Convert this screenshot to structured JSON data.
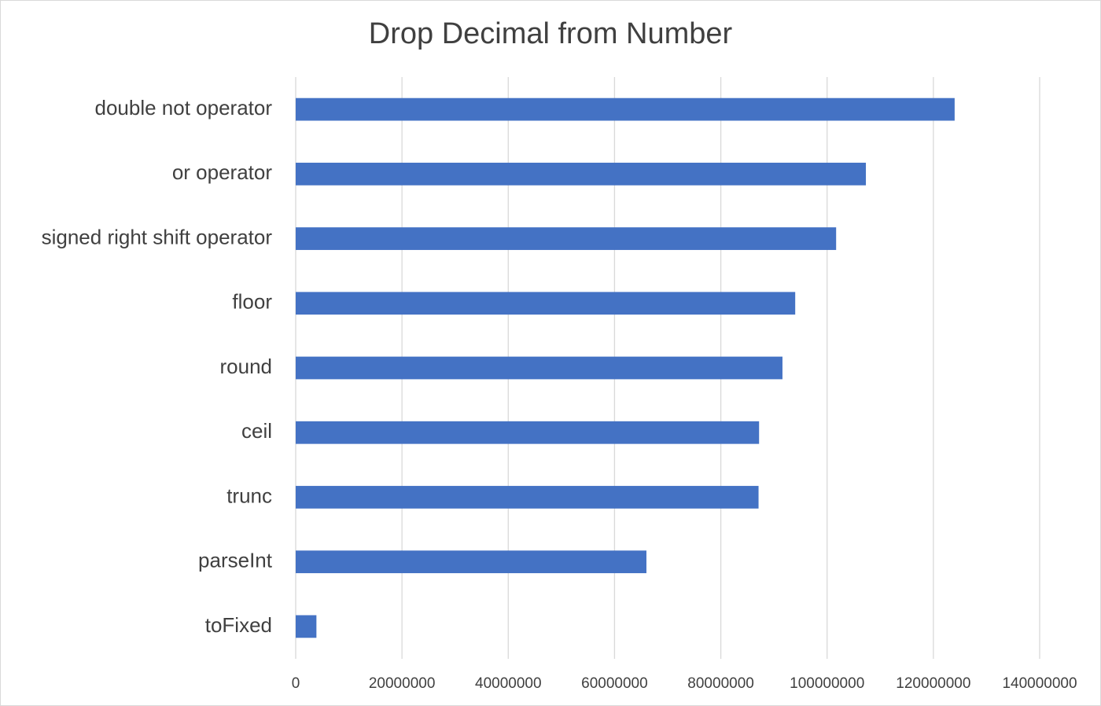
{
  "chart_data": {
    "type": "bar",
    "orientation": "horizontal",
    "title": "Drop Decimal from Number",
    "xlabel": "",
    "ylabel": "",
    "categories": [
      "double not operator",
      "or operator",
      "signed right shift operator",
      "floor",
      "round",
      "ceil",
      "trunc",
      "parseInt",
      "toFixed"
    ],
    "values": [
      124000000,
      107300000,
      101700000,
      94000000,
      91600000,
      87200000,
      87100000,
      66000000,
      3900000
    ],
    "xlim": [
      0,
      140000000
    ],
    "xticks": [
      0,
      20000000,
      40000000,
      60000000,
      80000000,
      100000000,
      120000000,
      140000000
    ],
    "xtick_labels": [
      "0",
      "20000000",
      "40000000",
      "60000000",
      "80000000",
      "100000000",
      "120000000",
      "140000000"
    ],
    "grid": "vertical",
    "legend": "none",
    "bar_color": "#4472c4",
    "grid_color": "#d9d9d9"
  }
}
